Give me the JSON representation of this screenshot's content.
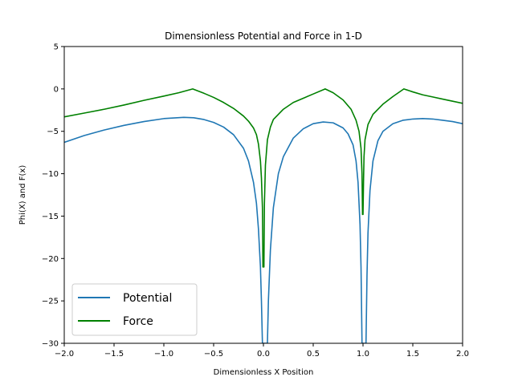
{
  "chart_data": {
    "type": "line",
    "title": "Dimensionless Potential and Force in 1-D",
    "xlabel": "Dimensionless X Position",
    "ylabel": "Phi(X) and F(x)",
    "xlim": [
      -2.0,
      2.0
    ],
    "ylim": [
      -30,
      5
    ],
    "x_ticks": [
      "-2.0",
      "-1.5",
      "-1.0",
      "-0.5",
      "0.0",
      "0.5",
      "1.0",
      "1.5",
      "2.0"
    ],
    "y_ticks": [
      "5",
      "0",
      "-5",
      "-10",
      "-15",
      "-20",
      "-25",
      "-30"
    ],
    "grid": false,
    "legend_location": "lower-left",
    "series": [
      {
        "name": "Potential",
        "color": "#1f77b4",
        "points": [
          [
            -2.0,
            -6.3
          ],
          [
            -1.8,
            -5.5
          ],
          [
            -1.6,
            -4.85
          ],
          [
            -1.4,
            -4.3
          ],
          [
            -1.2,
            -3.85
          ],
          [
            -1.0,
            -3.5
          ],
          [
            -0.8,
            -3.35
          ],
          [
            -0.7,
            -3.4
          ],
          [
            -0.6,
            -3.6
          ],
          [
            -0.5,
            -3.95
          ],
          [
            -0.4,
            -4.5
          ],
          [
            -0.3,
            -5.4
          ],
          [
            -0.2,
            -7.0
          ],
          [
            -0.15,
            -8.5
          ],
          [
            -0.1,
            -11.0
          ],
          [
            -0.07,
            -13.5
          ],
          [
            -0.05,
            -16.5
          ],
          [
            -0.03,
            -21.0
          ],
          [
            -0.02,
            -25.0
          ],
          [
            -0.01,
            -30.0
          ],
          [
            0.04,
            -30.0
          ],
          [
            0.05,
            -25.0
          ],
          [
            0.07,
            -19.0
          ],
          [
            0.1,
            -14.0
          ],
          [
            0.15,
            -10.0
          ],
          [
            0.2,
            -8.0
          ],
          [
            0.3,
            -5.8
          ],
          [
            0.4,
            -4.7
          ],
          [
            0.5,
            -4.1
          ],
          [
            0.6,
            -3.9
          ],
          [
            0.7,
            -4.0
          ],
          [
            0.8,
            -4.6
          ],
          [
            0.85,
            -5.3
          ],
          [
            0.9,
            -6.6
          ],
          [
            0.93,
            -8.5
          ],
          [
            0.95,
            -11.0
          ],
          [
            0.97,
            -16.0
          ],
          [
            0.98,
            -21.0
          ],
          [
            0.99,
            -30.0
          ],
          [
            1.03,
            -30.0
          ],
          [
            1.04,
            -22.0
          ],
          [
            1.05,
            -17.0
          ],
          [
            1.07,
            -12.0
          ],
          [
            1.1,
            -8.5
          ],
          [
            1.15,
            -6.1
          ],
          [
            1.2,
            -5.0
          ],
          [
            1.3,
            -4.1
          ],
          [
            1.4,
            -3.7
          ],
          [
            1.5,
            -3.55
          ],
          [
            1.6,
            -3.5
          ],
          [
            1.7,
            -3.55
          ],
          [
            1.8,
            -3.7
          ],
          [
            1.9,
            -3.85
          ],
          [
            2.0,
            -4.1
          ]
        ]
      },
      {
        "name": "Force",
        "color": "#008000",
        "points": [
          [
            -2.0,
            -3.3
          ],
          [
            -1.8,
            -2.85
          ],
          [
            -1.6,
            -2.4
          ],
          [
            -1.4,
            -1.9
          ],
          [
            -1.2,
            -1.35
          ],
          [
            -1.0,
            -0.85
          ],
          [
            -0.85,
            -0.45
          ],
          [
            -0.71,
            0.0
          ],
          [
            -0.6,
            -0.5
          ],
          [
            -0.5,
            -1.0
          ],
          [
            -0.4,
            -1.6
          ],
          [
            -0.3,
            -2.3
          ],
          [
            -0.2,
            -3.2
          ],
          [
            -0.15,
            -3.8
          ],
          [
            -0.1,
            -4.6
          ],
          [
            -0.07,
            -5.4
          ],
          [
            -0.05,
            -6.5
          ],
          [
            -0.03,
            -8.5
          ],
          [
            -0.02,
            -10.5
          ],
          [
            -0.01,
            -14.0
          ],
          [
            -0.005,
            -21.0
          ],
          [
            0.005,
            -21.0
          ],
          [
            0.01,
            -13.5
          ],
          [
            0.02,
            -9.0
          ],
          [
            0.04,
            -6.0
          ],
          [
            0.07,
            -4.5
          ],
          [
            0.1,
            -3.6
          ],
          [
            0.2,
            -2.4
          ],
          [
            0.3,
            -1.6
          ],
          [
            0.4,
            -1.1
          ],
          [
            0.5,
            -0.6
          ],
          [
            0.62,
            0.0
          ],
          [
            0.7,
            -0.45
          ],
          [
            0.8,
            -1.3
          ],
          [
            0.88,
            -2.4
          ],
          [
            0.93,
            -3.7
          ],
          [
            0.96,
            -5.0
          ],
          [
            0.98,
            -7.0
          ],
          [
            0.99,
            -10.0
          ],
          [
            0.995,
            -14.8
          ],
          [
            1.0,
            -14.8
          ],
          [
            1.005,
            -11.0
          ],
          [
            1.01,
            -8.0
          ],
          [
            1.02,
            -6.0
          ],
          [
            1.05,
            -4.2
          ],
          [
            1.1,
            -3.0
          ],
          [
            1.2,
            -1.8
          ],
          [
            1.3,
            -0.9
          ],
          [
            1.41,
            0.0
          ],
          [
            1.5,
            -0.35
          ],
          [
            1.6,
            -0.7
          ],
          [
            1.7,
            -0.95
          ],
          [
            1.8,
            -1.2
          ],
          [
            1.9,
            -1.45
          ],
          [
            2.0,
            -1.7
          ]
        ]
      }
    ]
  }
}
